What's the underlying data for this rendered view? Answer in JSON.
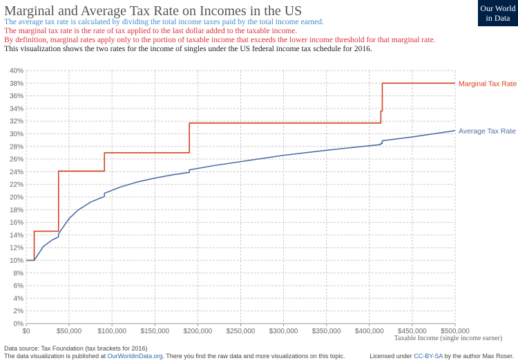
{
  "chart_data": {
    "type": "line",
    "title": "Marginal and Average Tax Rate on Incomes in the US",
    "subtitle_lines": [
      {
        "text": "The average tax rate is calculated by dividing the total income taxes paid by the total income earned.",
        "color": "#3f8fcc"
      },
      {
        "text": "The marginal tax rate is the rate of tax applied to the last dollar added to the taxable income.",
        "color": "#d9333a"
      },
      {
        "text": "By definition, marginal rates apply only to the portion of taxable income that exceeds the lower income threshold for that marginal rate.",
        "color": "#d9333a"
      },
      {
        "text": "This visualization shows the two rates for the income of singles under the US federal income tax schedule for 2016.",
        "color": "#222222"
      }
    ],
    "x_label": "Taxable Income (single income earner)",
    "xlim": [
      0,
      500000
    ],
    "xticks": [
      {
        "value": 0,
        "label": "$0"
      },
      {
        "value": 50000,
        "label": "$50,000"
      },
      {
        "value": 100000,
        "label": "$100,000"
      },
      {
        "value": 150000,
        "label": "$150,000"
      },
      {
        "value": 200000,
        "label": "$200,000"
      },
      {
        "value": 250000,
        "label": "$250,000"
      },
      {
        "value": 300000,
        "label": "$300,000"
      },
      {
        "value": 350000,
        "label": "$350,000"
      },
      {
        "value": 400000,
        "label": "$400,000"
      },
      {
        "value": 450000,
        "label": "$450,000"
      },
      {
        "value": 500000,
        "label": "$500,000"
      }
    ],
    "ylim": [
      0,
      40
    ],
    "yticks": [
      {
        "value": 0,
        "label": "0%"
      },
      {
        "value": 2,
        "label": "2%"
      },
      {
        "value": 4,
        "label": "4%"
      },
      {
        "value": 6,
        "label": "6%"
      },
      {
        "value": 8,
        "label": "8%"
      },
      {
        "value": 10,
        "label": "10%"
      },
      {
        "value": 12,
        "label": "12%"
      },
      {
        "value": 14,
        "label": "14%"
      },
      {
        "value": 16,
        "label": "16%"
      },
      {
        "value": 18,
        "label": "18%"
      },
      {
        "value": 20,
        "label": "20%"
      },
      {
        "value": 22,
        "label": "22%"
      },
      {
        "value": 24,
        "label": "24%"
      },
      {
        "value": 26,
        "label": "26%"
      },
      {
        "value": 28,
        "label": "28%"
      },
      {
        "value": 30,
        "label": "30%"
      },
      {
        "value": 32,
        "label": "32%"
      },
      {
        "value": 34,
        "label": "34%"
      },
      {
        "value": 36,
        "label": "36%"
      },
      {
        "value": 38,
        "label": "38%"
      },
      {
        "value": 40,
        "label": "40%"
      }
    ],
    "grid": true,
    "series": [
      {
        "name": "Marginal Tax Rate",
        "color": "#d4411e",
        "x": [
          0,
          9275,
          9275,
          37650,
          37650,
          91150,
          91150,
          190150,
          190150,
          413350,
          413350,
          415050,
          415050,
          500000
        ],
        "values": [
          10,
          10,
          14.6,
          14.6,
          24.1,
          24.1,
          27,
          27,
          31.7,
          31.7,
          33.6,
          33.6,
          38,
          38
        ]
      },
      {
        "name": "Average Tax Rate",
        "color": "#4a6fa5",
        "x": [
          0,
          9275,
          20000,
          30000,
          37650,
          37650,
          50000,
          60000,
          75000,
          91150,
          91150,
          110000,
          130000,
          150000,
          170000,
          190150,
          190150,
          220000,
          250000,
          300000,
          350000,
          413350,
          413350,
          415050,
          415050,
          450000,
          500000
        ],
        "values": [
          10,
          10,
          12.2,
          13.2,
          13.7,
          14.2,
          16.6,
          17.9,
          19.2,
          20.1,
          20.6,
          21.6,
          22.4,
          23,
          23.5,
          23.9,
          24.3,
          25,
          25.6,
          26.6,
          27.4,
          28.3,
          28.5,
          28.5,
          28.9,
          29.5,
          30.5
        ]
      }
    ]
  },
  "logo": [
    "Our World",
    "in Data"
  ],
  "footer": {
    "source": "Data source: Tax Foundation (tax brackets for 2016)",
    "published": [
      "The data visualization is published at ",
      "OurWorldinData.org",
      ". There you find the raw data and more visualizations on this topic."
    ],
    "license": [
      "Licensed under ",
      "CC-BY-SA",
      " by the author Max Roser."
    ]
  }
}
